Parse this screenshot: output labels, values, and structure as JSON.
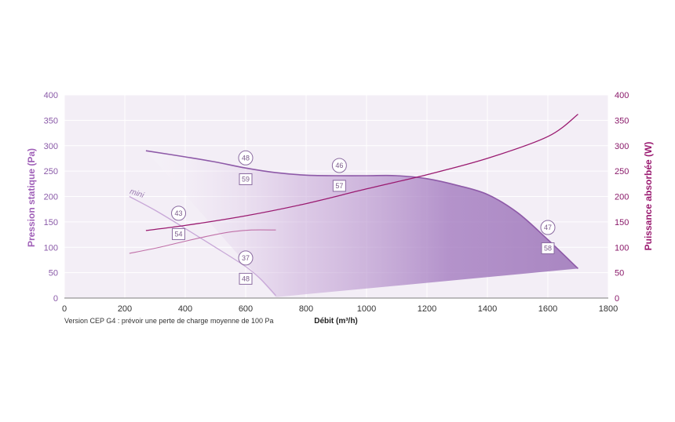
{
  "chart_data": {
    "type": "line",
    "xlabel": "Débit (m³/h)",
    "ylabel_left": "Pression statique (Pa)",
    "ylabel_right": "Puissance absorbée (W)",
    "xlim": [
      0,
      1800
    ],
    "ylim_left": [
      0,
      400
    ],
    "ylim_right": [
      0,
      400
    ],
    "x_ticks": [
      "0",
      "200",
      "400",
      "600",
      "800",
      "1000",
      "1200",
      "1400",
      "1600",
      "1800"
    ],
    "y_ticks_left": [
      "0",
      "50",
      "100",
      "150",
      "200",
      "250",
      "300",
      "350",
      "400"
    ],
    "y_ticks_right": [
      "0",
      "50",
      "100",
      "150",
      "200",
      "250",
      "300",
      "350",
      "400"
    ],
    "grid": true,
    "note": "Version CEP G4 : prévoir une perte de charge moyenne de 100 Pa",
    "colors": {
      "pressure": "#8e5aa8",
      "power": "#9a1a70",
      "area": "#a878c0",
      "plot_bg": "#f3eef6",
      "grid": "#ffffff"
    },
    "series": [
      {
        "name": "",
        "kind": "pressure-max",
        "x": [
          270,
          400,
          500,
          600,
          700,
          800,
          900,
          1000,
          1100,
          1200,
          1300,
          1400,
          1500,
          1600,
          1700
        ],
        "y": [
          290,
          278,
          268,
          256,
          247,
          242,
          241,
          241,
          241,
          235,
          222,
          204,
          168,
          115,
          58
        ]
      },
      {
        "name": "mini",
        "kind": "pressure-min",
        "x": [
          215,
          300,
          400,
          500,
          600,
          650,
          700
        ],
        "y": [
          200,
          173,
          137,
          100,
          62,
          37,
          5
        ]
      },
      {
        "name": "",
        "kind": "power-max",
        "x": [
          270,
          400,
          600,
          800,
          1000,
          1200,
          1400,
          1600,
          1700
        ],
        "y": [
          133,
          143,
          162,
          186,
          215,
          243,
          275,
          318,
          362
        ]
      },
      {
        "name": "",
        "kind": "power-min",
        "x": [
          215,
          300,
          400,
          500,
          560,
          620,
          700
        ],
        "y": [
          88,
          98,
          112,
          125,
          131,
          134,
          134
        ]
      }
    ],
    "markers": [
      {
        "kind": "circle",
        "label": "48",
        "x": 600,
        "y": 276
      },
      {
        "kind": "square",
        "label": "59",
        "x": 600,
        "y": 234
      },
      {
        "kind": "circle",
        "label": "46",
        "x": 910,
        "y": 261
      },
      {
        "kind": "square",
        "label": "57",
        "x": 910,
        "y": 221
      },
      {
        "kind": "circle",
        "label": "43",
        "x": 378,
        "y": 167
      },
      {
        "kind": "square",
        "label": "54",
        "x": 378,
        "y": 126
      },
      {
        "kind": "circle",
        "label": "37",
        "x": 600,
        "y": 79
      },
      {
        "kind": "square",
        "label": "48",
        "x": 600,
        "y": 38
      },
      {
        "kind": "circle",
        "label": "47",
        "x": 1600,
        "y": 139
      },
      {
        "kind": "square",
        "label": "58",
        "x": 1600,
        "y": 98
      }
    ]
  }
}
